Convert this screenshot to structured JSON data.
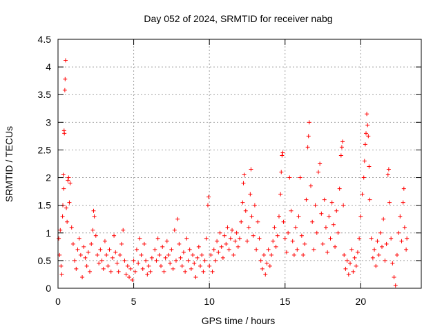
{
  "chart_data": {
    "type": "scatter",
    "title": "Day 052 of 2024, SRMTID for receiver nabg",
    "xlabel": "GPS time / hours",
    "ylabel": "SRMTID / TECUs",
    "xlim": [
      0,
      24
    ],
    "ylim": [
      0,
      4.5
    ],
    "x_ticks": [
      0,
      5,
      10,
      15,
      20
    ],
    "x_tick_labels": [
      "0",
      "5",
      "10",
      "15",
      "20"
    ],
    "y_ticks": [
      0,
      0.5,
      1,
      1.5,
      2,
      2.5,
      3,
      3.5,
      4,
      4.5
    ],
    "y_tick_labels": [
      "0",
      "0.5",
      "1",
      "1.5",
      "2",
      "2.5",
      "3",
      "3.5",
      "4",
      "4.5"
    ],
    "grid": true,
    "marker": "plus",
    "marker_color": "#ff0000",
    "series": [
      {
        "name": "SRMTID",
        "points": [
          [
            0.05,
            0.9
          ],
          [
            0.1,
            0.6
          ],
          [
            0.15,
            1.05
          ],
          [
            0.2,
            0.4
          ],
          [
            0.25,
            0.25
          ],
          [
            0.3,
            1.3
          ],
          [
            0.32,
            1.5
          ],
          [
            0.35,
            2.05
          ],
          [
            0.38,
            1.8
          ],
          [
            0.4,
            2.85
          ],
          [
            0.42,
            2.8
          ],
          [
            0.45,
            3.58
          ],
          [
            0.47,
            3.78
          ],
          [
            0.5,
            4.12
          ],
          [
            0.55,
            1.45
          ],
          [
            0.6,
            1.2
          ],
          [
            0.65,
            1.95
          ],
          [
            0.7,
            2.0
          ],
          [
            0.75,
            1.55
          ],
          [
            0.8,
            1.9
          ],
          [
            0.9,
            1.1
          ],
          [
            1.0,
            0.8
          ],
          [
            1.1,
            0.5
          ],
          [
            1.2,
            0.35
          ],
          [
            1.3,
            0.7
          ],
          [
            1.4,
            0.9
          ],
          [
            1.5,
            0.6
          ],
          [
            1.6,
            0.2
          ],
          [
            1.7,
            0.75
          ],
          [
            1.8,
            0.55
          ],
          [
            1.9,
            0.4
          ],
          [
            2.0,
            0.65
          ],
          [
            2.1,
            0.3
          ],
          [
            2.2,
            0.8
          ],
          [
            2.3,
            1.05
          ],
          [
            2.35,
            1.4
          ],
          [
            2.4,
            1.3
          ],
          [
            2.5,
            0.95
          ],
          [
            2.6,
            0.6
          ],
          [
            2.7,
            0.45
          ],
          [
            2.8,
            0.7
          ],
          [
            2.9,
            0.5
          ],
          [
            3.0,
            0.35
          ],
          [
            3.1,
            0.85
          ],
          [
            3.2,
            0.6
          ],
          [
            3.3,
            0.4
          ],
          [
            3.4,
            0.7
          ],
          [
            3.5,
            0.3
          ],
          [
            3.6,
            0.55
          ],
          [
            3.7,
            0.95
          ],
          [
            3.8,
            0.65
          ],
          [
            3.9,
            0.45
          ],
          [
            4.0,
            0.3
          ],
          [
            4.1,
            0.6
          ],
          [
            4.2,
            0.8
          ],
          [
            4.3,
            1.05
          ],
          [
            4.4,
            0.5
          ],
          [
            4.5,
            0.25
          ],
          [
            4.6,
            0.4
          ],
          [
            4.7,
            0.2
          ],
          [
            4.8,
            0.35
          ],
          [
            4.9,
            0.15
          ],
          [
            5.0,
            0.5
          ],
          [
            5.1,
            0.3
          ],
          [
            5.2,
            0.7
          ],
          [
            5.3,
            0.45
          ],
          [
            5.4,
            0.9
          ],
          [
            5.5,
            0.6
          ],
          [
            5.6,
            0.35
          ],
          [
            5.7,
            0.8
          ],
          [
            5.8,
            0.5
          ],
          [
            5.9,
            0.25
          ],
          [
            6.0,
            0.4
          ],
          [
            6.1,
            0.3
          ],
          [
            6.2,
            0.55
          ],
          [
            6.4,
            0.7
          ],
          [
            6.5,
            0.5
          ],
          [
            6.6,
            0.9
          ],
          [
            6.7,
            0.6
          ],
          [
            6.8,
            0.4
          ],
          [
            6.9,
            0.75
          ],
          [
            7.0,
            0.3
          ],
          [
            7.1,
            0.55
          ],
          [
            7.2,
            0.85
          ],
          [
            7.3,
            0.6
          ],
          [
            7.4,
            0.45
          ],
          [
            7.5,
            0.7
          ],
          [
            7.6,
            0.35
          ],
          [
            7.7,
            1.05
          ],
          [
            7.8,
            0.5
          ],
          [
            7.9,
            1.25
          ],
          [
            8.0,
            0.8
          ],
          [
            8.1,
            0.55
          ],
          [
            8.2,
            0.4
          ],
          [
            8.3,
            0.65
          ],
          [
            8.4,
            0.3
          ],
          [
            8.5,
            0.9
          ],
          [
            8.6,
            0.5
          ],
          [
            8.7,
            0.7
          ],
          [
            8.8,
            0.35
          ],
          [
            8.9,
            0.6
          ],
          [
            9.0,
            0.45
          ],
          [
            9.1,
            0.2
          ],
          [
            9.2,
            0.55
          ],
          [
            9.3,
            0.75
          ],
          [
            9.4,
            0.4
          ],
          [
            9.5,
            0.6
          ],
          [
            9.6,
            0.3
          ],
          [
            9.7,
            0.5
          ],
          [
            9.8,
            0.9
          ],
          [
            9.9,
            1.5
          ],
          [
            9.95,
            1.65
          ],
          [
            10.0,
            0.4
          ],
          [
            10.1,
            0.6
          ],
          [
            10.2,
            0.3
          ],
          [
            10.3,
            0.7
          ],
          [
            10.4,
            0.5
          ],
          [
            10.5,
            0.85
          ],
          [
            10.6,
            0.65
          ],
          [
            10.7,
            1.0
          ],
          [
            10.8,
            0.75
          ],
          [
            10.9,
            0.55
          ],
          [
            11.0,
            0.95
          ],
          [
            11.1,
            0.8
          ],
          [
            11.2,
            1.1
          ],
          [
            11.3,
            0.7
          ],
          [
            11.4,
            0.9
          ],
          [
            11.5,
            1.05
          ],
          [
            11.6,
            0.6
          ],
          [
            11.7,
            0.85
          ],
          [
            11.8,
            1.0
          ],
          [
            11.9,
            0.75
          ],
          [
            12.0,
            0.9
          ],
          [
            12.1,
            1.2
          ],
          [
            12.2,
            1.55
          ],
          [
            12.25,
            1.9
          ],
          [
            12.3,
            2.05
          ],
          [
            12.4,
            1.4
          ],
          [
            12.5,
            0.85
          ],
          [
            12.6,
            1.1
          ],
          [
            12.7,
            1.7
          ],
          [
            12.75,
            2.15
          ],
          [
            12.8,
            1.3
          ],
          [
            12.9,
            0.95
          ],
          [
            13.0,
            1.5
          ],
          [
            13.1,
            0.7
          ],
          [
            13.2,
            1.2
          ],
          [
            13.3,
            0.9
          ],
          [
            13.4,
            0.5
          ],
          [
            13.5,
            0.35
          ],
          [
            13.6,
            0.6
          ],
          [
            13.7,
            0.25
          ],
          [
            13.8,
            0.45
          ],
          [
            13.9,
            0.7
          ],
          [
            14.0,
            0.4
          ],
          [
            14.1,
            0.6
          ],
          [
            14.2,
            0.85
          ],
          [
            14.3,
            1.1
          ],
          [
            14.4,
            0.75
          ],
          [
            14.5,
            0.95
          ],
          [
            14.6,
            1.3
          ],
          [
            14.7,
            1.7
          ],
          [
            14.75,
            2.1
          ],
          [
            14.8,
            2.4
          ],
          [
            14.85,
            2.45
          ],
          [
            14.9,
            1.2
          ],
          [
            15.0,
            0.9
          ],
          [
            15.1,
            0.65
          ],
          [
            15.2,
            1.0
          ],
          [
            15.3,
            2.0
          ],
          [
            15.4,
            1.4
          ],
          [
            15.5,
            0.85
          ],
          [
            15.6,
            0.6
          ],
          [
            15.7,
            1.1
          ],
          [
            15.8,
            0.7
          ],
          [
            15.9,
            1.3
          ],
          [
            16.0,
            2.0
          ],
          [
            16.1,
            0.95
          ],
          [
            16.2,
            0.6
          ],
          [
            16.3,
            0.8
          ],
          [
            16.4,
            1.6
          ],
          [
            16.5,
            2.55
          ],
          [
            16.55,
            2.75
          ],
          [
            16.6,
            3.0
          ],
          [
            16.7,
            1.85
          ],
          [
            16.8,
            1.2
          ],
          [
            16.9,
            0.7
          ],
          [
            17.0,
            1.5
          ],
          [
            17.1,
            1.0
          ],
          [
            17.2,
            2.1
          ],
          [
            17.3,
            2.25
          ],
          [
            17.4,
            1.35
          ],
          [
            17.5,
            0.8
          ],
          [
            17.6,
            1.6
          ],
          [
            17.7,
            1.1
          ],
          [
            17.8,
            0.65
          ],
          [
            17.9,
            1.3
          ],
          [
            18.0,
            0.9
          ],
          [
            18.1,
            1.55
          ],
          [
            18.2,
            1.15
          ],
          [
            18.3,
            0.75
          ],
          [
            18.4,
            1.4
          ],
          [
            18.5,
            1.0
          ],
          [
            18.6,
            1.8
          ],
          [
            18.7,
            2.4
          ],
          [
            18.75,
            2.55
          ],
          [
            18.8,
            2.65
          ],
          [
            18.85,
            1.5
          ],
          [
            18.9,
            0.6
          ],
          [
            19.0,
            0.35
          ],
          [
            19.1,
            0.5
          ],
          [
            19.2,
            0.25
          ],
          [
            19.3,
            0.45
          ],
          [
            19.4,
            0.7
          ],
          [
            19.5,
            0.3
          ],
          [
            19.6,
            0.55
          ],
          [
            19.7,
            0.4
          ],
          [
            19.8,
            0.65
          ],
          [
            19.9,
            0.9
          ],
          [
            20.0,
            1.3
          ],
          [
            20.1,
            1.7
          ],
          [
            20.2,
            2.0
          ],
          [
            20.25,
            2.3
          ],
          [
            20.3,
            2.6
          ],
          [
            20.35,
            2.8
          ],
          [
            20.4,
            3.15
          ],
          [
            20.45,
            2.95
          ],
          [
            20.5,
            2.75
          ],
          [
            20.55,
            2.2
          ],
          [
            20.6,
            1.6
          ],
          [
            20.7,
            0.9
          ],
          [
            20.8,
            0.55
          ],
          [
            20.9,
            0.7
          ],
          [
            21.0,
            0.4
          ],
          [
            21.1,
            0.85
          ],
          [
            21.2,
            0.6
          ],
          [
            21.3,
            1.0
          ],
          [
            21.4,
            0.75
          ],
          [
            21.5,
            1.25
          ],
          [
            21.6,
            0.5
          ],
          [
            21.7,
            0.8
          ],
          [
            21.8,
            2.05
          ],
          [
            21.85,
            2.15
          ],
          [
            21.9,
            1.55
          ],
          [
            22.0,
            0.9
          ],
          [
            22.1,
            0.45
          ],
          [
            22.2,
            0.2
          ],
          [
            22.3,
            0.05
          ],
          [
            22.4,
            0.6
          ],
          [
            22.5,
            1.0
          ],
          [
            22.6,
            1.3
          ],
          [
            22.7,
            0.85
          ],
          [
            22.8,
            1.55
          ],
          [
            22.85,
            1.8
          ],
          [
            22.9,
            1.1
          ],
          [
            23.0,
            0.7
          ],
          [
            23.05,
            0.9
          ]
        ]
      }
    ]
  }
}
